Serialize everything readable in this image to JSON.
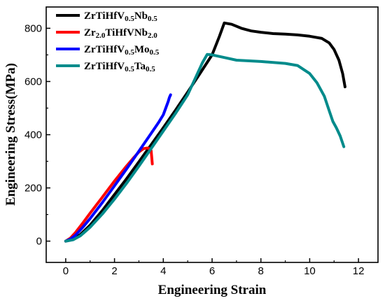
{
  "chart_data": {
    "type": "line",
    "title": "",
    "xlabel": "Engineering Strain",
    "ylabel": "Engineering Stress(MPa)",
    "xlim": [
      -0.8,
      12.8
    ],
    "ylim": [
      -80,
      880
    ],
    "x_ticks": [
      0,
      2,
      4,
      6,
      8,
      10,
      12
    ],
    "y_ticks": [
      0,
      200,
      400,
      600,
      800
    ],
    "grid": false,
    "legend_position": "top-left",
    "series": [
      {
        "name": "ZrTiHfV0.5Nb0.5",
        "label_parts": [
          [
            "ZrTiHfV",
            ""
          ],
          [
            "0.5",
            "sub"
          ],
          [
            "Nb",
            ""
          ],
          [
            "0.5",
            "sub"
          ]
        ],
        "color": "#000000",
        "x": [
          0,
          0.3,
          0.6,
          1.0,
          1.5,
          2.0,
          2.5,
          3.0,
          3.5,
          4.0,
          4.5,
          5.0,
          5.5,
          6.0,
          6.3,
          6.5,
          6.8,
          7.2,
          7.6,
          8.0,
          8.5,
          9.0,
          9.5,
          10.0,
          10.5,
          10.8,
          11.0,
          11.2,
          11.35,
          11.45
        ],
        "y": [
          0,
          6,
          25,
          60,
          115,
          175,
          235,
          298,
          362,
          426,
          492,
          560,
          630,
          700,
          770,
          820,
          815,
          800,
          790,
          785,
          780,
          778,
          775,
          770,
          762,
          745,
          720,
          680,
          630,
          580
        ]
      },
      {
        "name": "Zr2.0TiHfVNb2.0",
        "label_parts": [
          [
            "Zr",
            ""
          ],
          [
            "2.0",
            "sub"
          ],
          [
            "TiHfVNb",
            ""
          ],
          [
            "2.0",
            "sub"
          ]
        ],
        "color": "#ff0000",
        "x": [
          0,
          0.2,
          0.4,
          0.7,
          1.0,
          1.5,
          2.0,
          2.5,
          2.8,
          3.0,
          3.1,
          3.2,
          3.35,
          3.45,
          3.5,
          3.52,
          3.55
        ],
        "y": [
          0,
          12,
          32,
          68,
          105,
          165,
          226,
          283,
          315,
          335,
          342,
          348,
          350,
          347,
          340,
          320,
          290
        ]
      },
      {
        "name": "ZrTiHfV0.5Mo0.5",
        "label_parts": [
          [
            "ZrTiHfV",
            ""
          ],
          [
            "0.5",
            "sub"
          ],
          [
            "Mo",
            ""
          ],
          [
            "0.5",
            "sub"
          ]
        ],
        "color": "#0000ff",
        "x": [
          0,
          0.2,
          0.4,
          0.7,
          1.0,
          1.5,
          2.0,
          2.5,
          3.0,
          3.5,
          3.8,
          4.0,
          4.1,
          4.2,
          4.25,
          4.3
        ],
        "y": [
          0,
          8,
          22,
          52,
          85,
          145,
          208,
          272,
          338,
          405,
          445,
          475,
          500,
          525,
          540,
          550
        ]
      },
      {
        "name": "ZrTiHfV0.5Ta0.5",
        "label_parts": [
          [
            "ZrTiHfV",
            ""
          ],
          [
            "0.5",
            "sub"
          ],
          [
            "Ta",
            ""
          ],
          [
            "0.5",
            "sub"
          ]
        ],
        "color": "#008b8b",
        "x": [
          0,
          0.3,
          0.6,
          1.0,
          1.5,
          2.0,
          2.5,
          3.0,
          3.5,
          4.0,
          4.5,
          5.0,
          5.3,
          5.6,
          5.8,
          6.0,
          6.5,
          7.0,
          8.0,
          9.0,
          9.5,
          10.0,
          10.3,
          10.6,
          10.8,
          10.95,
          11.1,
          11.25,
          11.4
        ],
        "y": [
          0,
          5,
          20,
          52,
          102,
          158,
          218,
          282,
          348,
          414,
          480,
          550,
          610,
          670,
          702,
          700,
          690,
          680,
          675,
          668,
          660,
          630,
          595,
          545,
          490,
          450,
          425,
          395,
          355
        ]
      }
    ]
  }
}
